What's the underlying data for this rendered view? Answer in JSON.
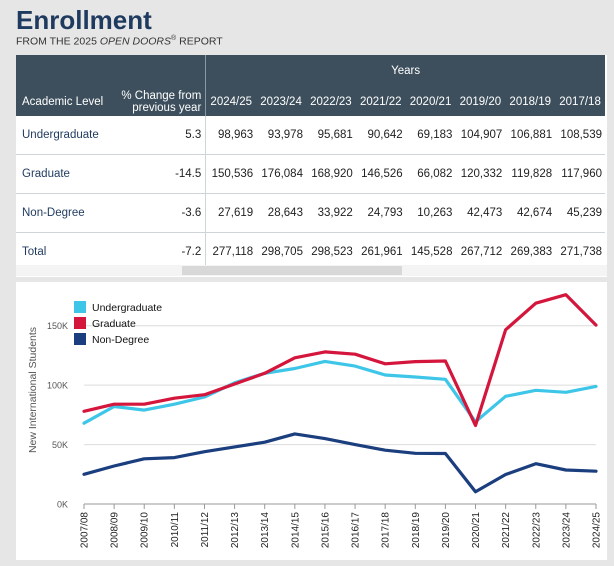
{
  "header": {
    "title": "Enrollment",
    "subtitle_prefix": "FROM THE 2025 ",
    "subtitle_italic": "OPEN DOORS",
    "subtitle_reg": "®",
    "subtitle_suffix": " REPORT"
  },
  "table": {
    "years_label": "Years",
    "col_level": "Academic Level",
    "col_change_1": "% Change from",
    "col_change_2": "previous year",
    "years": [
      "2024/25",
      "2023/24",
      "2022/23",
      "2021/22",
      "2020/21",
      "2019/20",
      "2018/19",
      "2017/18"
    ],
    "rows": [
      {
        "level": "Undergraduate",
        "change": "5.3",
        "values": [
          "98,963",
          "93,978",
          "95,681",
          "90,642",
          "69,183",
          "104,907",
          "106,881",
          "108,539"
        ]
      },
      {
        "level": "Graduate",
        "change": "-14.5",
        "values": [
          "150,536",
          "176,084",
          "168,920",
          "146,526",
          "66,082",
          "120,332",
          "119,828",
          "117,960"
        ]
      },
      {
        "level": "Non-Degree",
        "change": "-3.6",
        "values": [
          "27,619",
          "28,643",
          "33,922",
          "24,793",
          "10,263",
          "42,473",
          "42,674",
          "45,239"
        ]
      },
      {
        "level": "Total",
        "change": "-7.2",
        "values": [
          "277,118",
          "298,705",
          "298,523",
          "261,961",
          "145,528",
          "267,712",
          "269,383",
          "271,738"
        ]
      }
    ]
  },
  "chart_data": {
    "type": "line",
    "ylabel": "New International Students",
    "ylim": [
      0,
      175000
    ],
    "yticks": [
      0,
      50000,
      100000,
      150000
    ],
    "ytick_labels": [
      "0K",
      "50K",
      "100K",
      "150K"
    ],
    "legend_position": "top-left",
    "x": [
      "2007/08",
      "2008/09",
      "2009/10",
      "2010/11",
      "2011/12",
      "2012/13",
      "2013/14",
      "2014/15",
      "2015/16",
      "2016/17",
      "2017/18",
      "2018/19",
      "2019/20",
      "2020/21",
      "2021/22",
      "2022/23",
      "2023/24",
      "2024/25"
    ],
    "series": [
      {
        "name": "Undergraduate",
        "color": "#3ec6e8",
        "values": [
          68000,
          82000,
          79000,
          84000,
          90000,
          102000,
          110000,
          114000,
          120000,
          116000,
          108539,
          106881,
          104907,
          69183,
          90642,
          95681,
          93978,
          98963
        ]
      },
      {
        "name": "Graduate",
        "color": "#d4163c",
        "values": [
          78000,
          84000,
          84000,
          89000,
          92000,
          101000,
          110000,
          123000,
          128000,
          126000,
          117960,
          119828,
          120332,
          66082,
          146526,
          168920,
          176084,
          150536
        ]
      },
      {
        "name": "Non-Degree",
        "color": "#1b3e7e",
        "values": [
          25000,
          32000,
          38000,
          39000,
          44000,
          48000,
          52000,
          59000,
          55000,
          50000,
          45239,
          42674,
          42473,
          10263,
          24793,
          33922,
          28643,
          27619
        ]
      }
    ]
  }
}
